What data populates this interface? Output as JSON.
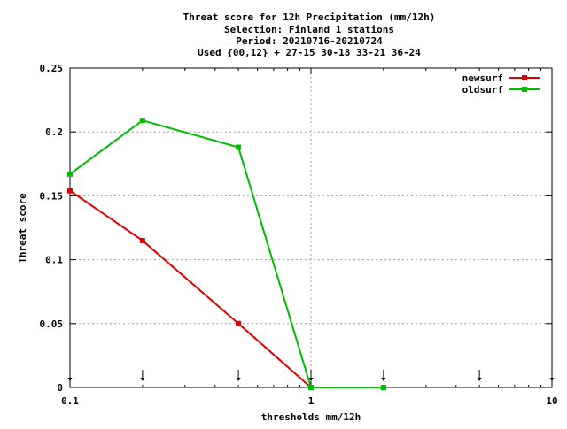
{
  "chart_data": {
    "type": "line",
    "title_lines": [
      "Threat score  for 12h Precipitation (mm/12h)",
      "Selection: Finland      1 stations",
      "Period: 20210716-20210724",
      "Used {00,12} + 27-15 30-18 33-21 36-24"
    ],
    "xlabel": "thresholds mm/12h",
    "ylabel": "Threat score",
    "x_scale": "log",
    "xlim": [
      0.1,
      10
    ],
    "ylim": [
      0,
      0.25
    ],
    "x_ticks": [
      {
        "value": 0.1,
        "label": "0.1"
      },
      {
        "value": 1,
        "label": "1"
      },
      {
        "value": 10,
        "label": "10"
      }
    ],
    "y_ticks": [
      {
        "value": 0,
        "label": "0"
      },
      {
        "value": 0.05,
        "label": "0.05"
      },
      {
        "value": 0.1,
        "label": "0.1"
      },
      {
        "value": 0.15,
        "label": "0.15"
      },
      {
        "value": 0.2,
        "label": "0.2"
      },
      {
        "value": 0.25,
        "label": "0.25"
      }
    ],
    "threshold_markers": [
      0.1,
      0.2,
      0.5,
      1,
      2,
      5,
      10
    ],
    "legend_position": "top-right",
    "series": [
      {
        "name": "newsurf",
        "color": "#dd0000",
        "x": [
          0.1,
          0.2,
          0.5,
          1,
          2
        ],
        "y": [
          0.154,
          0.115,
          0.05,
          0,
          0
        ]
      },
      {
        "name": "oldsurf",
        "color": "#00bb00",
        "x": [
          0.1,
          0.2,
          0.5,
          1,
          2
        ],
        "y": [
          0.167,
          0.209,
          0.188,
          0,
          0
        ]
      }
    ]
  }
}
